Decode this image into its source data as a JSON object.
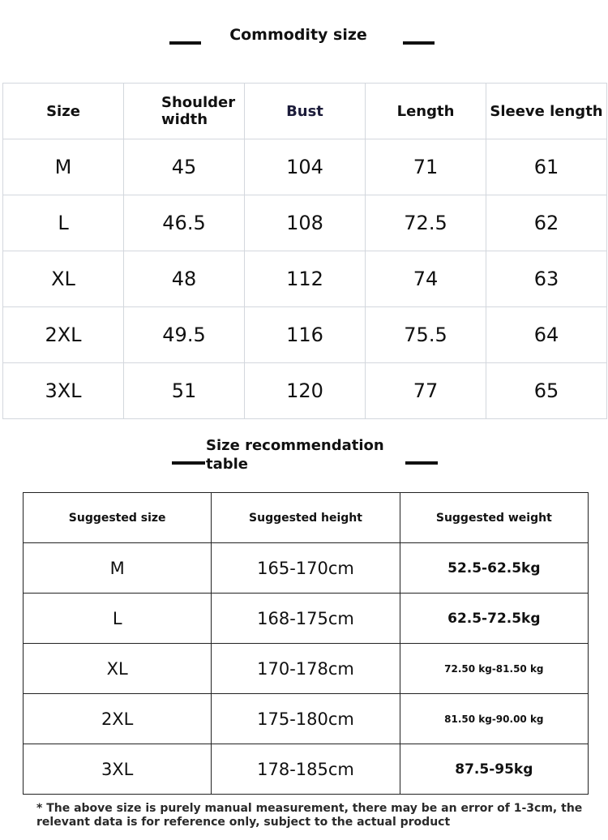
{
  "commodity": {
    "title": "Commodity size",
    "headers": [
      "Size",
      "Shoulder width",
      "Bust",
      "Length",
      "Sleeve length"
    ],
    "rows": [
      [
        "M",
        "45",
        "104",
        "71",
        "61"
      ],
      [
        "L",
        "46.5",
        "108",
        "72.5",
        "62"
      ],
      [
        "XL",
        "48",
        "112",
        "74",
        "63"
      ],
      [
        "2XL",
        "49.5",
        "116",
        "75.5",
        "64"
      ],
      [
        "3XL",
        "51",
        "120",
        "77",
        "65"
      ]
    ]
  },
  "recommendation": {
    "title": "Size recommendation table",
    "headers": [
      "Suggested size",
      "Suggested height",
      "Suggested weight"
    ],
    "rows": [
      [
        "M",
        "165-170cm",
        "52.5-62.5kg"
      ],
      [
        "L",
        "168-175cm",
        "62.5-72.5kg"
      ],
      [
        "XL",
        "170-178cm",
        "72.50 kg-81.50 kg"
      ],
      [
        "2XL",
        "175-180cm",
        "81.50 kg-90.00 kg"
      ],
      [
        "3XL",
        "178-185cm",
        "87.5-95kg"
      ]
    ]
  },
  "footnote": "* The above size is purely manual measurement, there may be an error of 1-3cm, the relevant data is for reference only, subject to the actual product"
}
